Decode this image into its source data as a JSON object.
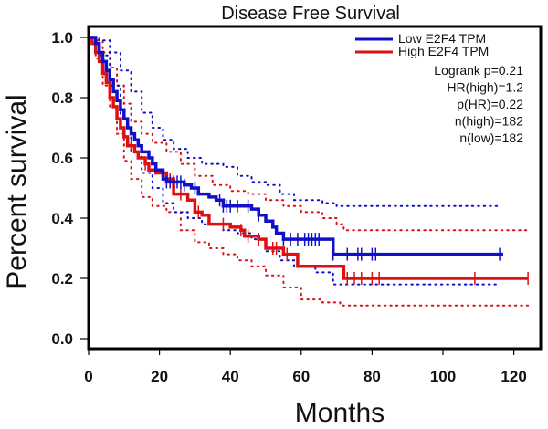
{
  "chart_data": {
    "type": "line",
    "subtype": "kaplan-meier",
    "title": "Disease Free Survival",
    "xlabel": "Months",
    "ylabel": "Percent survival",
    "xlim": [
      0,
      125
    ],
    "ylim": [
      0,
      1.0
    ],
    "x_ticks": [
      0,
      20,
      40,
      60,
      80,
      100,
      120
    ],
    "x_tick_labels": [
      "0",
      "20",
      "40",
      "60",
      "80",
      "100",
      "120"
    ],
    "y_ticks": [
      0.0,
      0.2,
      0.4,
      0.6,
      0.8,
      1.0
    ],
    "y_tick_labels": [
      "0.0",
      "0.2",
      "0.4",
      "0.6",
      "0.8",
      "1.0"
    ],
    "grid": false,
    "legend_position": "top-right",
    "series": [
      {
        "name": "Low E2F4 TPM",
        "color": "#1010c8",
        "steps": [
          [
            0,
            1.0
          ],
          [
            2,
            0.98
          ],
          [
            3,
            0.95
          ],
          [
            4,
            0.92
          ],
          [
            5,
            0.89
          ],
          [
            6,
            0.86
          ],
          [
            7,
            0.82
          ],
          [
            8,
            0.79
          ],
          [
            9,
            0.76
          ],
          [
            10,
            0.73
          ],
          [
            11,
            0.7
          ],
          [
            12,
            0.68
          ],
          [
            13,
            0.66
          ],
          [
            14,
            0.64
          ],
          [
            15,
            0.62
          ],
          [
            17,
            0.6
          ],
          [
            18,
            0.58
          ],
          [
            19,
            0.56
          ],
          [
            21,
            0.53
          ],
          [
            22,
            0.52
          ],
          [
            27,
            0.51
          ],
          [
            29,
            0.5
          ],
          [
            31,
            0.48
          ],
          [
            34,
            0.47
          ],
          [
            36,
            0.46
          ],
          [
            38,
            0.44
          ],
          [
            46,
            0.43
          ],
          [
            48,
            0.41
          ],
          [
            50,
            0.39
          ],
          [
            52,
            0.37
          ],
          [
            53,
            0.35
          ],
          [
            55,
            0.33
          ],
          [
            69,
            0.28
          ],
          [
            117,
            0.28
          ]
        ],
        "censor_marks": [
          22,
          23,
          24,
          25,
          26,
          27,
          30,
          37,
          38,
          39,
          40,
          42,
          45,
          48,
          55,
          57,
          59,
          61,
          62,
          63,
          64,
          65,
          69,
          73,
          76,
          77,
          80,
          81,
          116
        ],
        "ci_upper": [
          [
            0,
            1.0
          ],
          [
            3,
            0.99
          ],
          [
            6,
            0.95
          ],
          [
            9,
            0.89
          ],
          [
            12,
            0.82
          ],
          [
            15,
            0.75
          ],
          [
            18,
            0.7
          ],
          [
            21,
            0.66
          ],
          [
            24,
            0.63
          ],
          [
            28,
            0.6
          ],
          [
            32,
            0.58
          ],
          [
            38,
            0.57
          ],
          [
            42,
            0.54
          ],
          [
            46,
            0.52
          ],
          [
            50,
            0.51
          ],
          [
            54,
            0.48
          ],
          [
            58,
            0.46
          ],
          [
            66,
            0.45
          ],
          [
            70,
            0.44
          ],
          [
            116,
            0.44
          ]
        ],
        "ci_lower": [
          [
            0,
            1.0
          ],
          [
            3,
            0.94
          ],
          [
            6,
            0.84
          ],
          [
            9,
            0.7
          ],
          [
            12,
            0.62
          ],
          [
            15,
            0.55
          ],
          [
            18,
            0.5
          ],
          [
            21,
            0.45
          ],
          [
            24,
            0.42
          ],
          [
            28,
            0.4
          ],
          [
            32,
            0.38
          ],
          [
            38,
            0.36
          ],
          [
            42,
            0.35
          ],
          [
            46,
            0.33
          ],
          [
            50,
            0.29
          ],
          [
            54,
            0.26
          ],
          [
            58,
            0.24
          ],
          [
            64,
            0.22
          ],
          [
            69,
            0.18
          ],
          [
            116,
            0.18
          ]
        ]
      },
      {
        "name": "High E2F4 TPM",
        "color": "#dd1111",
        "steps": [
          [
            0,
            1.0
          ],
          [
            1,
            0.98
          ],
          [
            2,
            0.95
          ],
          [
            3,
            0.92
          ],
          [
            4,
            0.88
          ],
          [
            5,
            0.85
          ],
          [
            6,
            0.8
          ],
          [
            7,
            0.77
          ],
          [
            8,
            0.73
          ],
          [
            9,
            0.7
          ],
          [
            10,
            0.67
          ],
          [
            11,
            0.64
          ],
          [
            13,
            0.62
          ],
          [
            14,
            0.6
          ],
          [
            16,
            0.58
          ],
          [
            17,
            0.56
          ],
          [
            19,
            0.55
          ],
          [
            22,
            0.53
          ],
          [
            24,
            0.48
          ],
          [
            28,
            0.46
          ],
          [
            30,
            0.42
          ],
          [
            32,
            0.41
          ],
          [
            34,
            0.38
          ],
          [
            40,
            0.37
          ],
          [
            43,
            0.36
          ],
          [
            44,
            0.34
          ],
          [
            48,
            0.33
          ],
          [
            50,
            0.3
          ],
          [
            55,
            0.28
          ],
          [
            59,
            0.24
          ],
          [
            72,
            0.2
          ],
          [
            124,
            0.2
          ]
        ],
        "censor_marks": [
          12,
          16,
          23,
          26,
          31,
          38,
          43,
          45,
          48,
          52,
          53,
          56,
          73,
          75,
          77,
          80,
          82,
          109,
          124
        ],
        "ci_upper": [
          [
            0,
            1.0
          ],
          [
            2,
            0.99
          ],
          [
            4,
            0.95
          ],
          [
            6,
            0.9
          ],
          [
            8,
            0.84
          ],
          [
            10,
            0.78
          ],
          [
            12,
            0.72
          ],
          [
            15,
            0.68
          ],
          [
            18,
            0.65
          ],
          [
            22,
            0.62
          ],
          [
            26,
            0.58
          ],
          [
            30,
            0.54
          ],
          [
            35,
            0.51
          ],
          [
            40,
            0.49
          ],
          [
            45,
            0.48
          ],
          [
            50,
            0.46
          ],
          [
            55,
            0.44
          ],
          [
            60,
            0.42
          ],
          [
            66,
            0.4
          ],
          [
            70,
            0.38
          ],
          [
            72,
            0.36
          ],
          [
            124,
            0.36
          ]
        ],
        "ci_lower": [
          [
            0,
            1.0
          ],
          [
            2,
            0.93
          ],
          [
            4,
            0.84
          ],
          [
            6,
            0.77
          ],
          [
            8,
            0.68
          ],
          [
            10,
            0.59
          ],
          [
            12,
            0.53
          ],
          [
            15,
            0.47
          ],
          [
            18,
            0.44
          ],
          [
            22,
            0.42
          ],
          [
            26,
            0.36
          ],
          [
            30,
            0.32
          ],
          [
            34,
            0.3
          ],
          [
            38,
            0.28
          ],
          [
            42,
            0.26
          ],
          [
            46,
            0.24
          ],
          [
            50,
            0.21
          ],
          [
            55,
            0.17
          ],
          [
            60,
            0.13
          ],
          [
            66,
            0.12
          ],
          [
            71,
            0.11
          ],
          [
            124,
            0.11
          ]
        ]
      }
    ],
    "annotations": [
      "Logrank p=0.21",
      "HR(high)=1.2",
      "p(HR)=0.22",
      "n(high)=182",
      "n(low)=182"
    ]
  }
}
